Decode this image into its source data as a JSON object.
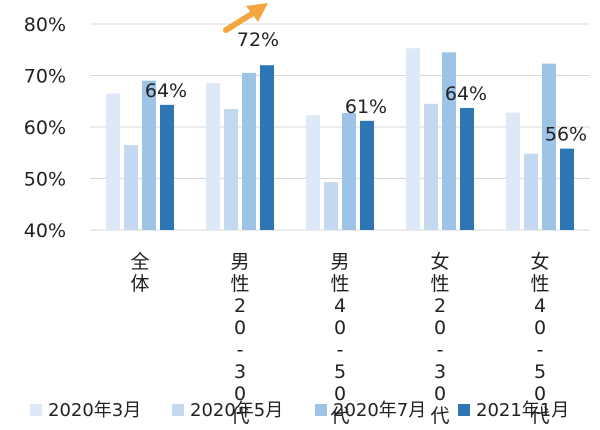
{
  "chart_data": {
    "type": "bar",
    "categories": [
      "全体",
      "男性20-30代",
      "男性40-50代",
      "女性20-30代",
      "女性40-50代"
    ],
    "series": [
      {
        "name": "2020年3月",
        "color": "#dde9f6",
        "values": [
          66.5,
          68.5,
          62.3,
          75.3,
          62.8
        ]
      },
      {
        "name": "2020年5月",
        "color": "#c4d9f0",
        "values": [
          56.5,
          63.5,
          49.3,
          64.5,
          54.8
        ]
      },
      {
        "name": "2020年7月",
        "color": "#9dc3e6",
        "values": [
          69.0,
          70.5,
          62.7,
          74.5,
          72.3
        ]
      },
      {
        "name": "2021年1月",
        "color": "#2e75b6",
        "values": [
          64.3,
          72.0,
          61.2,
          63.7,
          55.8
        ]
      }
    ],
    "data_labels": [
      "64%",
      "72%",
      "61%",
      "64%",
      "56%"
    ],
    "ylim": [
      40,
      80
    ],
    "yticks": [
      "40%",
      "50%",
      "60%",
      "70%",
      "80%"
    ],
    "legend_position": "bottom",
    "annotation": {
      "type": "arrow",
      "color": "#f4a540",
      "target_category": "男性20-30代"
    }
  }
}
